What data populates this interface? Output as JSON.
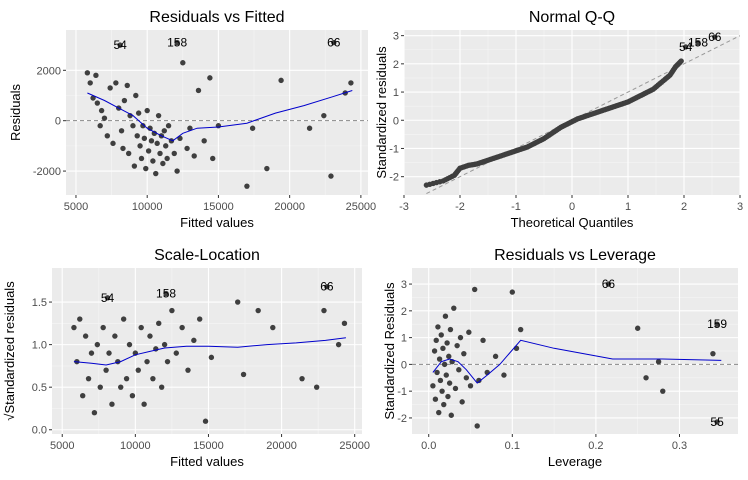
{
  "chart_data": [
    {
      "type": "scatter",
      "id": "rvf",
      "title": "Residuals vs Fitted",
      "xlabel": "Fitted values",
      "ylabel": "Residuals",
      "xlim": [
        4300,
        25500
      ],
      "ylim": [
        -2950,
        3600
      ],
      "xticks": [
        5000,
        10000,
        15000,
        20000,
        25000
      ],
      "xtick_labels": [
        "5000",
        "10000",
        "15000",
        "20000",
        "25000"
      ],
      "yticks": [
        -2000,
        0,
        2000
      ],
      "ytick_labels": [
        "-2000",
        "0",
        "2000"
      ],
      "hline": 0,
      "grid": true,
      "points": [
        [
          5800,
          1900
        ],
        [
          6000,
          1500
        ],
        [
          6200,
          900
        ],
        [
          6400,
          1800
        ],
        [
          6500,
          700
        ],
        [
          6700,
          -200
        ],
        [
          6800,
          400
        ],
        [
          7000,
          100
        ],
        [
          7200,
          -600
        ],
        [
          7400,
          1300
        ],
        [
          7600,
          -900
        ],
        [
          7800,
          1500
        ],
        [
          8000,
          500
        ],
        [
          8200,
          -400
        ],
        [
          8300,
          -1100
        ],
        [
          8400,
          800
        ],
        [
          8600,
          1400
        ],
        [
          8700,
          -1300
        ],
        [
          8800,
          200
        ],
        [
          9000,
          -200
        ],
        [
          9100,
          -1800
        ],
        [
          9200,
          1000
        ],
        [
          9300,
          -600
        ],
        [
          9400,
          300
        ],
        [
          9500,
          -1000
        ],
        [
          9600,
          -1500
        ],
        [
          9700,
          -200
        ],
        [
          9800,
          -700
        ],
        [
          9900,
          -1900
        ],
        [
          10000,
          400
        ],
        [
          10100,
          -1200
        ],
        [
          10200,
          -300
        ],
        [
          10300,
          -800
        ],
        [
          10400,
          -1600
        ],
        [
          10500,
          -500
        ],
        [
          10600,
          -2100
        ],
        [
          10700,
          -900
        ],
        [
          10800,
          200
        ],
        [
          10900,
          -1300
        ],
        [
          11000,
          -600
        ],
        [
          11100,
          -1700
        ],
        [
          11200,
          -400
        ],
        [
          11300,
          -1000
        ],
        [
          11400,
          -1500
        ],
        [
          11500,
          -200
        ],
        [
          11700,
          -800
        ],
        [
          11900,
          -1300
        ],
        [
          12100,
          -2000
        ],
        [
          12300,
          -700
        ],
        [
          12500,
          2300
        ],
        [
          12800,
          -1100
        ],
        [
          13000,
          -300
        ],
        [
          13300,
          -1400
        ],
        [
          13600,
          1200
        ],
        [
          14000,
          -800
        ],
        [
          14400,
          1700
        ],
        [
          14600,
          -1500
        ],
        [
          15000,
          -200
        ],
        [
          17000,
          -2600
        ],
        [
          17400,
          -300
        ],
        [
          18400,
          -1900
        ],
        [
          19400,
          1600
        ],
        [
          21400,
          -300
        ],
        [
          22400,
          200
        ],
        [
          22900,
          -2200
        ],
        [
          24300,
          1500
        ],
        [
          23900,
          1100
        ]
      ],
      "labeled_points": [
        {
          "x": 8100,
          "y": 3000,
          "label": "54"
        },
        {
          "x": 12100,
          "y": 3100,
          "label": "158"
        },
        {
          "x": 23100,
          "y": 3100,
          "label": "66"
        }
      ],
      "smooth": [
        [
          5800,
          1100
        ],
        [
          7000,
          800
        ],
        [
          8000,
          500
        ],
        [
          9000,
          200
        ],
        [
          10000,
          -300
        ],
        [
          11000,
          -600
        ],
        [
          11800,
          -800
        ],
        [
          12500,
          -500
        ],
        [
          13500,
          -300
        ],
        [
          15000,
          -250
        ],
        [
          17000,
          -100
        ],
        [
          19000,
          300
        ],
        [
          21000,
          600
        ],
        [
          23000,
          950
        ],
        [
          24400,
          1200
        ]
      ]
    },
    {
      "type": "scatter",
      "id": "qq",
      "title": "Normal Q-Q",
      "xlabel": "Theoretical Quantiles",
      "ylabel": "Standardized residuals",
      "xlim": [
        -3,
        3
      ],
      "ylim": [
        -2.65,
        3.2
      ],
      "xticks": [
        -3,
        -2,
        -1,
        0,
        1,
        2,
        3
      ],
      "xtick_labels": [
        "-3",
        "-2",
        "-1",
        "0",
        "1",
        "2",
        "3"
      ],
      "yticks": [
        -2,
        -1,
        0,
        1,
        2,
        3
      ],
      "ytick_labels": [
        "-2",
        "-1",
        "0",
        "1",
        "2",
        "3"
      ],
      "refline": [
        [
          -2.6,
          -2.6
        ],
        [
          3,
          3
        ]
      ],
      "grid": true,
      "labeled_points": [
        {
          "x": 2.03,
          "y": 2.6,
          "label": "54"
        },
        {
          "x": 2.25,
          "y": 2.75,
          "label": "158"
        },
        {
          "x": 2.55,
          "y": 2.95,
          "label": "66"
        }
      ],
      "qq_points": [
        [
          -2.6,
          -2.3
        ],
        [
          -2.3,
          -2.15
        ],
        [
          -2.1,
          -1.95
        ],
        [
          -2.0,
          -1.7
        ],
        [
          -1.85,
          -1.6
        ],
        [
          -1.7,
          -1.55
        ],
        [
          -1.55,
          -1.45
        ],
        [
          -1.4,
          -1.35
        ],
        [
          -1.25,
          -1.25
        ],
        [
          -1.1,
          -1.15
        ],
        [
          -0.95,
          -1.05
        ],
        [
          -0.8,
          -0.95
        ],
        [
          -0.65,
          -0.8
        ],
        [
          -0.5,
          -0.65
        ],
        [
          -0.35,
          -0.45
        ],
        [
          -0.2,
          -0.25
        ],
        [
          -0.05,
          -0.1
        ],
        [
          0.1,
          0.05
        ],
        [
          0.25,
          0.15
        ],
        [
          0.4,
          0.25
        ],
        [
          0.55,
          0.35
        ],
        [
          0.7,
          0.45
        ],
        [
          0.85,
          0.55
        ],
        [
          1.0,
          0.65
        ],
        [
          1.15,
          0.8
        ],
        [
          1.3,
          0.95
        ],
        [
          1.45,
          1.1
        ],
        [
          1.6,
          1.35
        ],
        [
          1.75,
          1.6
        ],
        [
          1.85,
          1.9
        ],
        [
          1.95,
          2.1
        ]
      ]
    },
    {
      "type": "scatter",
      "id": "sl",
      "title": "Scale-Location",
      "xlabel": "Fitted values",
      "ylabel": "√Standardized residuals",
      "xlim": [
        4300,
        25500
      ],
      "ylim": [
        -0.05,
        1.9
      ],
      "xticks": [
        5000,
        10000,
        15000,
        20000,
        25000
      ],
      "xtick_labels": [
        "5000",
        "10000",
        "15000",
        "20000",
        "25000"
      ],
      "yticks": [
        0.0,
        0.5,
        1.0,
        1.5
      ],
      "ytick_labels": [
        "0.0",
        "0.5",
        "1.0",
        "1.5"
      ],
      "grid": true,
      "points": [
        [
          5800,
          1.2
        ],
        [
          6000,
          0.8
        ],
        [
          6200,
          1.3
        ],
        [
          6400,
          0.4
        ],
        [
          6600,
          1.1
        ],
        [
          6800,
          0.6
        ],
        [
          7000,
          0.9
        ],
        [
          7200,
          0.2
        ],
        [
          7400,
          1.0
        ],
        [
          7600,
          0.5
        ],
        [
          7800,
          1.2
        ],
        [
          8000,
          0.7
        ],
        [
          8200,
          0.9
        ],
        [
          8400,
          0.3
        ],
        [
          8600,
          1.1
        ],
        [
          8800,
          0.8
        ],
        [
          9000,
          0.5
        ],
        [
          9200,
          1.3
        ],
        [
          9400,
          0.6
        ],
        [
          9600,
          1.0
        ],
        [
          9800,
          0.4
        ],
        [
          10000,
          0.9
        ],
        [
          10200,
          0.7
        ],
        [
          10400,
          1.2
        ],
        [
          10600,
          0.3
        ],
        [
          10800,
          0.8
        ],
        [
          11000,
          1.1
        ],
        [
          11200,
          0.6
        ],
        [
          11400,
          0.95
        ],
        [
          11600,
          1.25
        ],
        [
          11800,
          0.5
        ],
        [
          12000,
          1.0
        ],
        [
          12200,
          0.8
        ],
        [
          12500,
          1.4
        ],
        [
          12800,
          0.9
        ],
        [
          13200,
          1.2
        ],
        [
          13600,
          0.7
        ],
        [
          14000,
          1.05
        ],
        [
          14400,
          1.3
        ],
        [
          14800,
          0.1
        ],
        [
          15200,
          0.85
        ],
        [
          17000,
          1.5
        ],
        [
          17400,
          0.65
        ],
        [
          18400,
          1.4
        ],
        [
          19400,
          1.2
        ],
        [
          21400,
          0.6
        ],
        [
          22400,
          0.5
        ],
        [
          22900,
          1.4
        ],
        [
          24300,
          1.25
        ],
        [
          23900,
          1.0
        ]
      ],
      "labeled_points": [
        {
          "x": 8100,
          "y": 1.55,
          "label": "54"
        },
        {
          "x": 12100,
          "y": 1.6,
          "label": "158"
        },
        {
          "x": 23100,
          "y": 1.68,
          "label": "66"
        }
      ],
      "smooth": [
        [
          5800,
          0.8
        ],
        [
          7000,
          0.78
        ],
        [
          8000,
          0.76
        ],
        [
          9000,
          0.8
        ],
        [
          10000,
          0.88
        ],
        [
          11000,
          0.92
        ],
        [
          12000,
          0.96
        ],
        [
          13500,
          0.98
        ],
        [
          15000,
          0.98
        ],
        [
          17000,
          0.97
        ],
        [
          19000,
          1.0
        ],
        [
          21000,
          1.02
        ],
        [
          23000,
          1.05
        ],
        [
          24400,
          1.08
        ]
      ]
    },
    {
      "type": "scatter",
      "id": "rvl",
      "title": "Residuals vs Leverage",
      "xlabel": "Leverage",
      "ylabel": "Standardized Residuals",
      "xlim": [
        -0.02,
        0.37
      ],
      "ylim": [
        -2.6,
        3.6
      ],
      "xticks": [
        0.0,
        0.1,
        0.2,
        0.3
      ],
      "xtick_labels": [
        "0.0",
        "0.1",
        "0.2",
        "0.3"
      ],
      "yticks": [
        -2,
        -1,
        0,
        1,
        2,
        3
      ],
      "ytick_labels": [
        "-2",
        "-1",
        "0",
        "1",
        "2",
        "3"
      ],
      "hline": 0,
      "grid": true,
      "points": [
        [
          0.005,
          -0.8
        ],
        [
          0.007,
          0.5
        ],
        [
          0.008,
          -1.3
        ],
        [
          0.009,
          0.9
        ],
        [
          0.01,
          -0.3
        ],
        [
          0.011,
          1.4
        ],
        [
          0.012,
          -1.8
        ],
        [
          0.013,
          0.2
        ],
        [
          0.014,
          -0.6
        ],
        [
          0.015,
          1.1
        ],
        [
          0.016,
          -1.0
        ],
        [
          0.017,
          0.6
        ],
        [
          0.018,
          -1.5
        ],
        [
          0.019,
          0.0
        ],
        [
          0.02,
          1.8
        ],
        [
          0.021,
          -0.4
        ],
        [
          0.022,
          0.8
        ],
        [
          0.023,
          -1.2
        ],
        [
          0.024,
          0.3
        ],
        [
          0.025,
          -0.7
        ],
        [
          0.026,
          1.3
        ],
        [
          0.027,
          -1.9
        ],
        [
          0.028,
          0.1
        ],
        [
          0.03,
          2.1
        ],
        [
          0.032,
          -0.9
        ],
        [
          0.034,
          0.7
        ],
        [
          0.036,
          -0.2
        ],
        [
          0.038,
          1.0
        ],
        [
          0.04,
          -1.4
        ],
        [
          0.042,
          0.4
        ],
        [
          0.045,
          -0.5
        ],
        [
          0.048,
          1.2
        ],
        [
          0.05,
          -0.8
        ],
        [
          0.055,
          2.8
        ],
        [
          0.058,
          -2.3
        ],
        [
          0.06,
          -0.6
        ],
        [
          0.065,
          0.9
        ],
        [
          0.07,
          -0.3
        ],
        [
          0.08,
          0.3
        ],
        [
          0.09,
          -0.4
        ],
        [
          0.1,
          2.7
        ],
        [
          0.105,
          0.6
        ],
        [
          0.11,
          1.3
        ],
        [
          0.25,
          1.35
        ],
        [
          0.26,
          -0.5
        ],
        [
          0.275,
          0.1
        ],
        [
          0.28,
          -1.0
        ],
        [
          0.34,
          0.4
        ]
      ],
      "labeled_points": [
        {
          "x": 0.215,
          "y": 3.0,
          "label": "66"
        },
        {
          "x": 0.345,
          "y": 1.5,
          "label": "159"
        },
        {
          "x": 0.345,
          "y": -2.15,
          "label": "55"
        }
      ],
      "smooth": [
        [
          0.005,
          -0.3
        ],
        [
          0.015,
          0.1
        ],
        [
          0.025,
          0.2
        ],
        [
          0.035,
          0.1
        ],
        [
          0.045,
          -0.2
        ],
        [
          0.058,
          -0.7
        ],
        [
          0.07,
          -0.4
        ],
        [
          0.085,
          0.0
        ],
        [
          0.11,
          0.9
        ],
        [
          0.15,
          0.6
        ],
        [
          0.22,
          0.2
        ],
        [
          0.28,
          0.2
        ],
        [
          0.35,
          0.15
        ]
      ]
    }
  ]
}
